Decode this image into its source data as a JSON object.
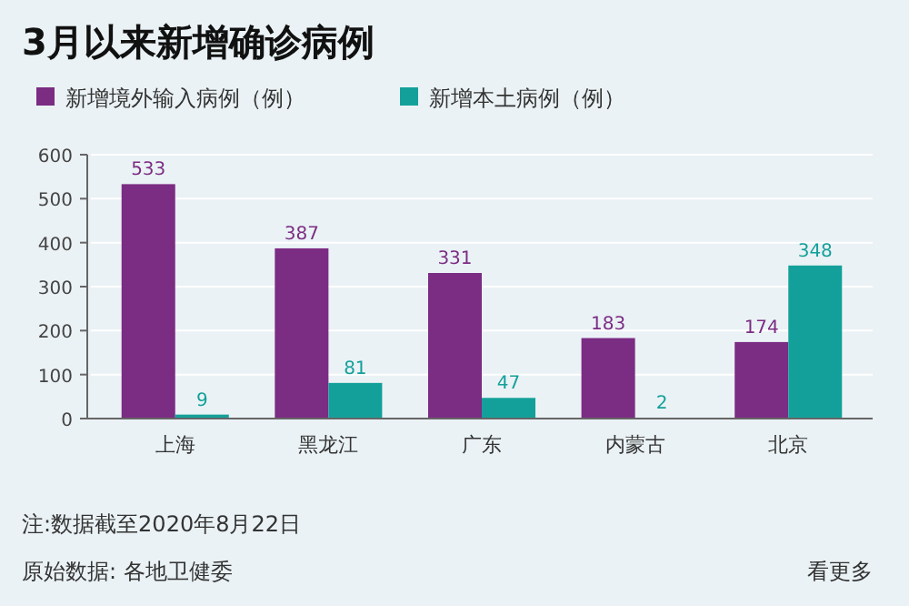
{
  "chart_data": {
    "type": "bar",
    "title": "3月以来新增确诊病例",
    "categories": [
      "上海",
      "黑龙江",
      "广东",
      "内蒙古",
      "北京"
    ],
    "series": [
      {
        "name": "新增境外输入病例（例）",
        "color": "#7b2c83",
        "values": [
          533,
          387,
          331,
          183,
          174
        ]
      },
      {
        "name": "新增本土病例（例）",
        "color": "#14a09a",
        "values": [
          9,
          81,
          47,
          2,
          348
        ]
      }
    ],
    "ylim": [
      0,
      600
    ],
    "yticks": [
      0,
      100,
      200,
      300,
      400,
      500,
      600
    ],
    "grid": "y",
    "legend": "top left",
    "data_labels": true,
    "annotations": [
      "注:数据截至2020年8月22日",
      "原始数据: 各地卫健委",
      "看更多"
    ]
  }
}
